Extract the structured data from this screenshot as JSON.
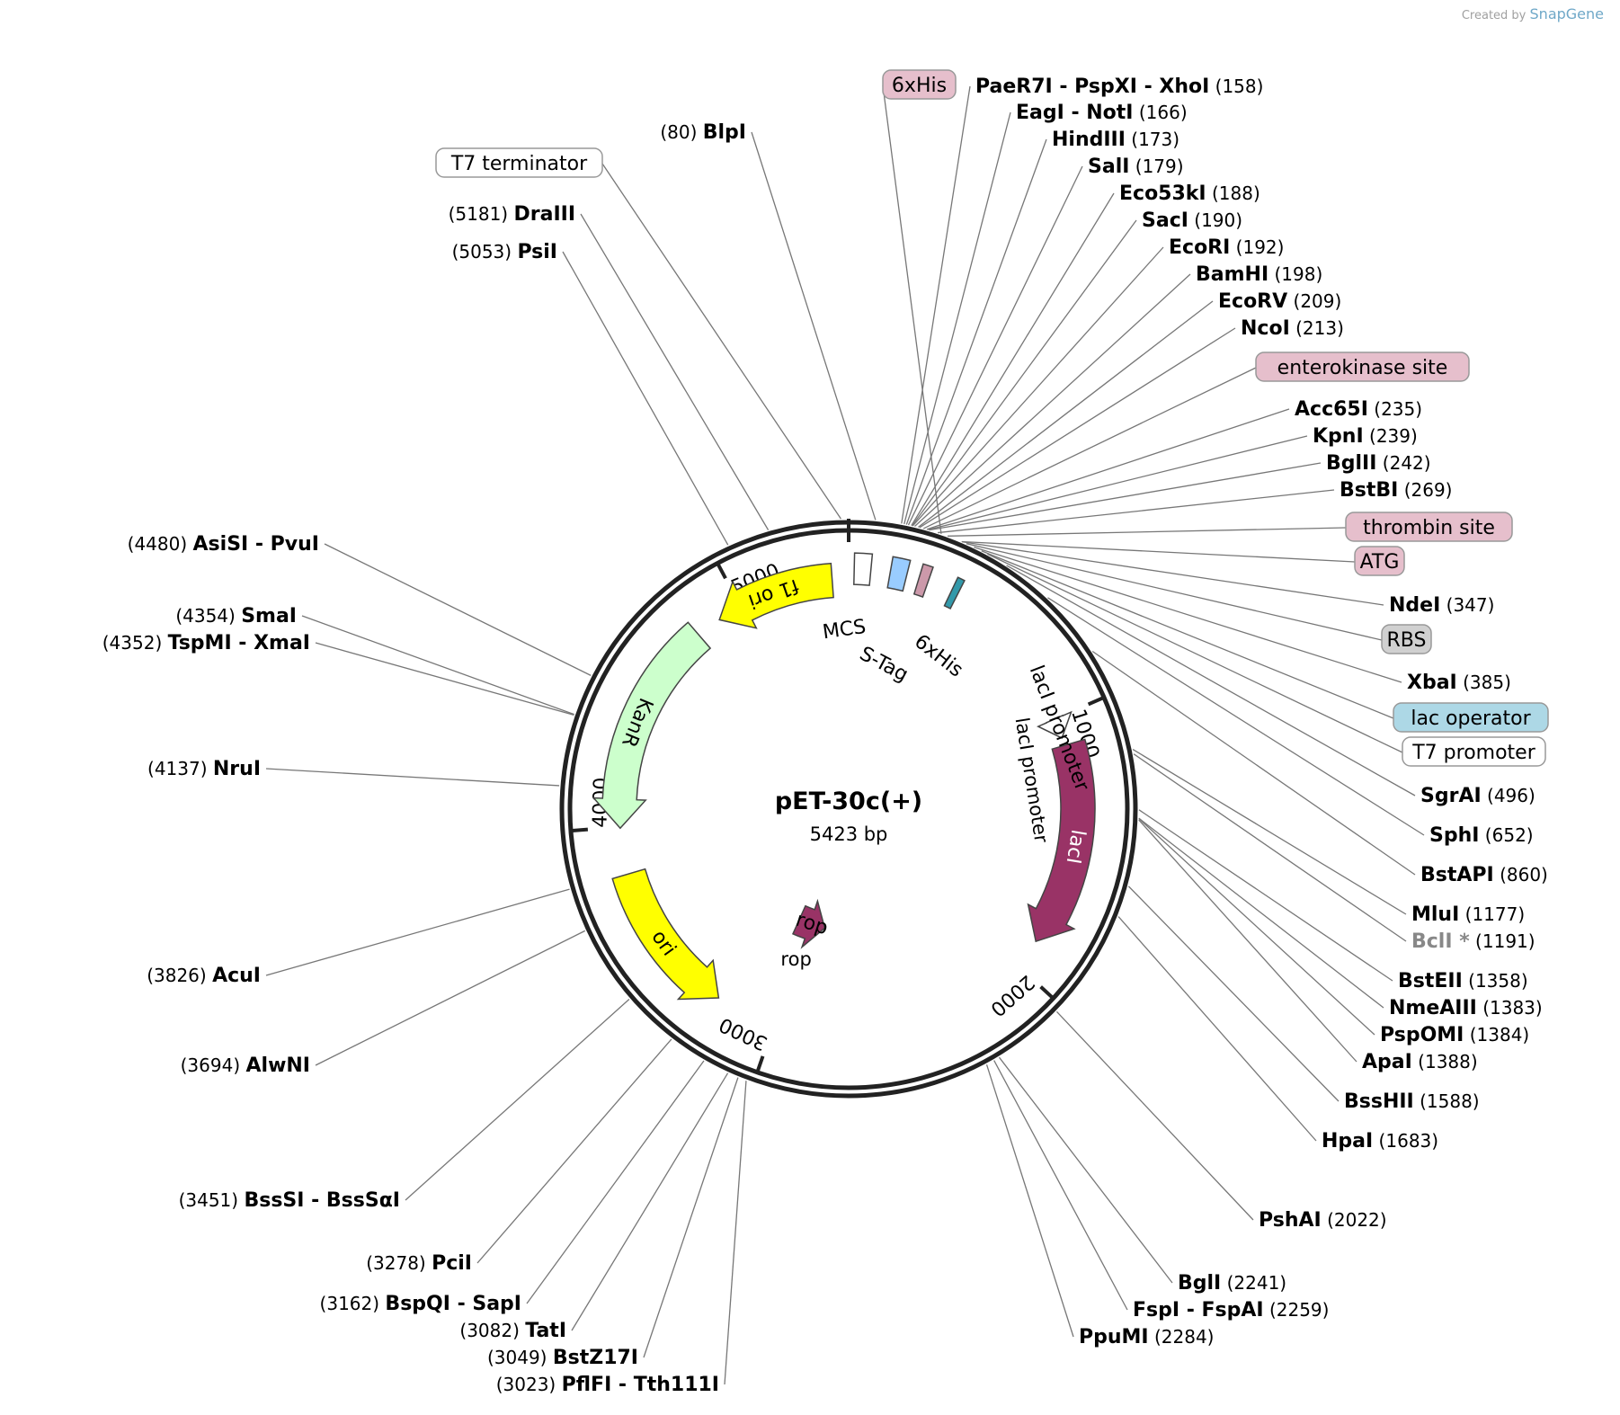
{
  "credit": {
    "prefix": "Created by",
    "brand": "SnapGene"
  },
  "plasmid": {
    "name": "pET-30c(+)",
    "size_label": "5423 bp",
    "length": 5423
  },
  "ticks": [
    {
      "label": "1000",
      "pos": 1000
    },
    {
      "label": "2000",
      "pos": 2000
    },
    {
      "label": "3000",
      "pos": 3000
    },
    {
      "label": "4000",
      "pos": 4000
    },
    {
      "label": "5000",
      "pos": 5000
    }
  ],
  "features": [
    {
      "name": "f1 ori",
      "start": 4906,
      "end": 5361,
      "strand": -1,
      "color": "#ffff00",
      "textColor": "#000000"
    },
    {
      "name": "KanR",
      "start": 3995,
      "end": 4810,
      "strand": -1,
      "color": "#ccffcc",
      "textColor": "#000000"
    },
    {
      "name": "ori",
      "start": 3232,
      "end": 3820,
      "strand": -1,
      "color": "#ffff00",
      "textColor": "#000000"
    },
    {
      "name": "rop",
      "start": 2883,
      "end": 3074,
      "strand": -1,
      "color": "#993366",
      "textColor": "#000000"
    },
    {
      "name": "lacI",
      "start": 1108,
      "end": 1887,
      "strand": 1,
      "color": "#993366",
      "textColor": "#ffffff"
    },
    {
      "name": "lacI promoter",
      "start": 1000,
      "end": 1078,
      "strand": 1,
      "color": "#ffffff",
      "textColor": "#000000"
    }
  ],
  "small_features": [
    {
      "name": "MCS",
      "start": 20,
      "end": 80,
      "color": "#ffffff"
    },
    {
      "name": "S-Tag",
      "start": 150,
      "end": 210,
      "color": "#99ccff"
    },
    {
      "name": "6xHis",
      "start": 255,
      "end": 290,
      "color": "#cc99aa"
    },
    {
      "name": "6xHis",
      "start": 380,
      "end": 405,
      "color": "#3399aa"
    }
  ],
  "feature_labels": [
    {
      "text": "MCS"
    },
    {
      "text": "S-Tag"
    },
    {
      "text": "6xHis"
    }
  ],
  "sites": [
    {
      "enzyme": "PaeR7I",
      "extra": "PspXI",
      "extra2": "XhoI",
      "pos": "158",
      "side": "right",
      "dim": false
    },
    {
      "enzyme": "EagI",
      "extra": "NotI",
      "pos": "166",
      "side": "right",
      "dim": false
    },
    {
      "enzyme": "HindIII",
      "pos": "173",
      "side": "right",
      "dim": false
    },
    {
      "enzyme": "SalI",
      "pos": "179",
      "side": "right",
      "dim": false
    },
    {
      "enzyme": "Eco53kI",
      "pos": "188",
      "side": "right",
      "dim": false
    },
    {
      "enzyme": "SacI",
      "pos": "190",
      "side": "right",
      "dim": false
    },
    {
      "enzyme": "EcoRI",
      "pos": "192",
      "side": "right",
      "dim": false
    },
    {
      "enzyme": "BamHI",
      "pos": "198",
      "side": "right",
      "dim": false
    },
    {
      "enzyme": "EcoRV",
      "pos": "209",
      "side": "right",
      "dim": false
    },
    {
      "enzyme": "NcoI",
      "pos": "213",
      "side": "right",
      "dim": false
    },
    {
      "enzyme": "Acc65I",
      "pos": "235",
      "side": "right",
      "dim": false
    },
    {
      "enzyme": "KpnI",
      "pos": "239",
      "side": "right",
      "dim": false
    },
    {
      "enzyme": "BglII",
      "pos": "242",
      "side": "right",
      "dim": false
    },
    {
      "enzyme": "BstBI",
      "pos": "269",
      "side": "right",
      "dim": false
    },
    {
      "enzyme": "NdeI",
      "pos": "347",
      "side": "right",
      "dim": false
    },
    {
      "enzyme": "XbaI",
      "pos": "385",
      "side": "right",
      "dim": false
    },
    {
      "enzyme": "SgrAI",
      "pos": "496",
      "side": "right",
      "dim": false
    },
    {
      "enzyme": "SphI",
      "pos": "652",
      "side": "right",
      "dim": false
    },
    {
      "enzyme": "BstAPI",
      "pos": "860",
      "side": "right",
      "dim": false
    },
    {
      "enzyme": "MluI",
      "pos": "1177",
      "side": "right",
      "dim": false
    },
    {
      "enzyme": "BclI *",
      "pos": "1191",
      "side": "right",
      "dim": true
    },
    {
      "enzyme": "BstEII",
      "pos": "1358",
      "side": "right",
      "dim": false
    },
    {
      "enzyme": "NmeAIII",
      "pos": "1383",
      "side": "right",
      "dim": false
    },
    {
      "enzyme": "PspOMI",
      "pos": "1384",
      "side": "right",
      "dim": false
    },
    {
      "enzyme": "ApaI",
      "pos": "1388",
      "side": "right",
      "dim": false
    },
    {
      "enzyme": "BssHII",
      "pos": "1588",
      "side": "right",
      "dim": false
    },
    {
      "enzyme": "HpaI",
      "pos": "1683",
      "side": "right",
      "dim": false
    },
    {
      "enzyme": "PshAI",
      "pos": "2022",
      "side": "right",
      "dim": false
    },
    {
      "enzyme": "BglI",
      "pos": "2241",
      "side": "right",
      "dim": false
    },
    {
      "enzyme": "FspI",
      "extra": "FspAI",
      "pos": "2259",
      "side": "right",
      "dim": false
    },
    {
      "enzyme": "PpuMI",
      "pos": "2284",
      "side": "right",
      "dim": false
    },
    {
      "enzyme": "PflFI",
      "extra": "Tth111I",
      "pos": "3023",
      "side": "left",
      "dim": false
    },
    {
      "enzyme": "BstZ17I",
      "pos": "3049",
      "side": "left",
      "dim": false
    },
    {
      "enzyme": "TatI",
      "pos": "3082",
      "side": "left",
      "dim": false
    },
    {
      "enzyme": "BspQI",
      "extra": "SapI",
      "pos": "3162",
      "side": "left",
      "dim": false
    },
    {
      "enzyme": "PciI",
      "pos": "3278",
      "side": "left",
      "dim": false
    },
    {
      "enzyme": "BssSI",
      "extra": "BssSαI",
      "pos": "3451",
      "side": "left",
      "dim": false
    },
    {
      "enzyme": "AlwNI",
      "pos": "3694",
      "side": "left",
      "dim": false
    },
    {
      "enzyme": "AcuI",
      "pos": "3826",
      "side": "left",
      "dim": false
    },
    {
      "enzyme": "NruI",
      "pos": "4137",
      "side": "left",
      "dim": false
    },
    {
      "enzyme": "TspMI",
      "extra": "XmaI",
      "pos": "4352",
      "side": "left",
      "dim": false
    },
    {
      "enzyme": "SmaI",
      "pos": "4354",
      "side": "left",
      "dim": false
    },
    {
      "enzyme": "AsiSI",
      "extra": "PvuI",
      "pos": "4480",
      "side": "left",
      "dim": false
    },
    {
      "enzyme": "PsiI",
      "pos": "5053",
      "side": "left",
      "dim": false
    },
    {
      "enzyme": "DraIII",
      "pos": "5181",
      "side": "left",
      "dim": false
    },
    {
      "enzyme": "BlpI",
      "pos": "80",
      "side": "left",
      "dim": false
    }
  ],
  "boxed_labels": [
    {
      "text": "6xHis",
      "fill": "#e6bfcc",
      "pos": 280
    },
    {
      "text": "T7 terminator",
      "fill": "#ffffff",
      "pos": 5400
    },
    {
      "text": "enterokinase site",
      "fill": "#e6bfcc",
      "pos": 225
    },
    {
      "text": "thrombin site",
      "fill": "#e6bfcc",
      "pos": 300
    },
    {
      "text": "ATG",
      "fill": "#e6bfcc",
      "pos": 345
    },
    {
      "text": "RBS",
      "fill": "#d0d0d0",
      "pos": 360
    },
    {
      "text": "lac operator",
      "fill": "#add8e6",
      "pos": 410
    },
    {
      "text": "T7 promoter",
      "fill": "#ffffff",
      "pos": 430
    }
  ]
}
